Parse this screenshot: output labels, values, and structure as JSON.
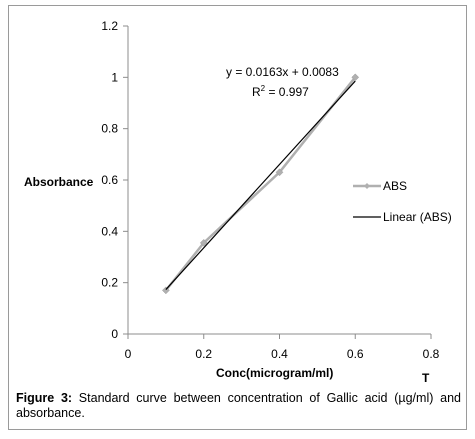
{
  "chart_data": {
    "type": "scatter",
    "title": "",
    "xlabel": "Conc(microgram/ml)",
    "ylabel": "Absorbance",
    "xlim": [
      0,
      0.8
    ],
    "ylim": [
      0,
      1.2
    ],
    "xticks": [
      "0",
      "0.2",
      "0.4",
      "0.6",
      "0.8"
    ],
    "yticks": [
      "0",
      "0.2",
      "0.4",
      "0.6",
      "0.8",
      "1",
      "1.2"
    ],
    "grid": false,
    "legend_position": "right",
    "series": [
      {
        "name": "ABS",
        "color": "#b0b0b0",
        "x": [
          0.1,
          0.2,
          0.4,
          0.6
        ],
        "y": [
          0.17,
          0.355,
          0.63,
          1.0
        ]
      }
    ],
    "trendline": {
      "name": "Linear (ABS)",
      "color": "#000000",
      "slope": 0.0163,
      "intercept": 0.0083,
      "x_range": [
        0.1,
        0.6
      ]
    },
    "equation_text": "y = 0.0163x + 0.0083",
    "r2_label": "R",
    "r2_sup": "2",
    "r2_value": " = 0.997",
    "extra_label": "T"
  },
  "caption": {
    "label": "Figure 3:",
    "text": " Standard curve between concentration of Gallic acid (µg/ml) and absorbance."
  }
}
